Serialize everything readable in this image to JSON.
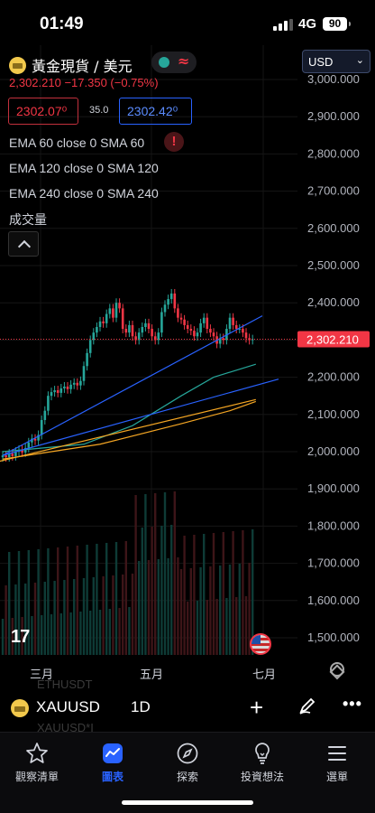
{
  "status_bar": {
    "time": "01:49",
    "network": "4G",
    "battery": "90"
  },
  "header": {
    "title": "黃金現貨 / 美元",
    "currency": "USD",
    "price_change_line": "2,302.210  −17.350 (−0.75%)",
    "bid": "2302.07⁰",
    "spread": "35.0",
    "ask": "2302.42⁰"
  },
  "indicators": [
    "EMA 60 close 0 SMA 60",
    "EMA 120 close 0 SMA 120",
    "EMA 240 close 0 SMA 240",
    "成交量"
  ],
  "warning_icon": "!",
  "logo_text": "17",
  "months": [
    "三月",
    "五月",
    "七月"
  ],
  "symbol_bar": {
    "ghost_top": "ETHUSDT",
    "ghost_bottom": "XAUUSD*I",
    "symbol": "XAUUSD",
    "timeframe": "1D",
    "plus_icon": "+",
    "more_icon": "•••"
  },
  "nav": [
    {
      "label": "觀察清單",
      "icon": "star-icon"
    },
    {
      "label": "圖表",
      "icon": "chart-icon"
    },
    {
      "label": "探索",
      "icon": "compass-icon"
    },
    {
      "label": "投資想法",
      "icon": "lightbulb-icon"
    },
    {
      "label": "選單",
      "icon": "menu-icon"
    }
  ],
  "colors": {
    "up": "#26a69a",
    "down": "#f23645",
    "ema60": "#26a69a",
    "ema240": "#f5a623",
    "trend": "#2962ff"
  },
  "chart_data": {
    "type": "candlestick",
    "symbol": "XAUUSD",
    "timeframe": "1D",
    "y_ticks": [
      3000,
      2900,
      2800,
      2700,
      2600,
      2500,
      2400,
      2300,
      2200,
      2100,
      2000,
      1900,
      1800,
      1700,
      1600,
      1500
    ],
    "y_tick_labels": [
      "3,000.000",
      "2,900.000",
      "2,800.000",
      "2,700.000",
      "2,600.000",
      "2,500.000",
      "2,400.000",
      "2,300.000",
      "2,200.000",
      "2,100.000",
      "2,000.000",
      "1,900.000",
      "1,800.000",
      "1,700.000",
      "1,600.000",
      "1,500.000"
    ],
    "last_price": 2302.21,
    "last_price_label": "2,302.210",
    "x_labels": [
      "三月",
      "五月",
      "七月"
    ],
    "close": [
      1990,
      1985,
      1995,
      1988,
      2000,
      2005,
      1998,
      2010,
      2025,
      2035,
      2030,
      2045,
      2085,
      2110,
      2150,
      2160,
      2165,
      2158,
      2170,
      2175,
      2168,
      2180,
      2185,
      2178,
      2190,
      2230,
      2265,
      2300,
      2320,
      2335,
      2350,
      2345,
      2370,
      2385,
      2360,
      2400,
      2385,
      2330,
      2320,
      2340,
      2310,
      2300,
      2320,
      2335,
      2345,
      2330,
      2310,
      2300,
      2320,
      2375,
      2395,
      2410,
      2425,
      2385,
      2360,
      2355,
      2340,
      2330,
      2325,
      2310,
      2320,
      2345,
      2360,
      2330,
      2320,
      2310,
      2290,
      2305,
      2300,
      2330,
      2360,
      2340,
      2330,
      2330,
      2320,
      2305,
      2300,
      2302
    ],
    "ema60": [
      [
        0,
        2000
      ],
      [
        25,
        2020
      ],
      [
        40,
        2070
      ],
      [
        55,
        2150
      ],
      [
        65,
        2200
      ],
      [
        78,
        2235
      ]
    ],
    "ema120": [
      [
        0,
        1980
      ],
      [
        30,
        2020
      ],
      [
        55,
        2075
      ],
      [
        70,
        2110
      ],
      [
        78,
        2135
      ]
    ],
    "trendlines": [
      [
        [
          0,
          1990
        ],
        [
          80,
          2365
        ]
      ],
      [
        [
          0,
          1990
        ],
        [
          85,
          2195
        ]
      ]
    ]
  }
}
